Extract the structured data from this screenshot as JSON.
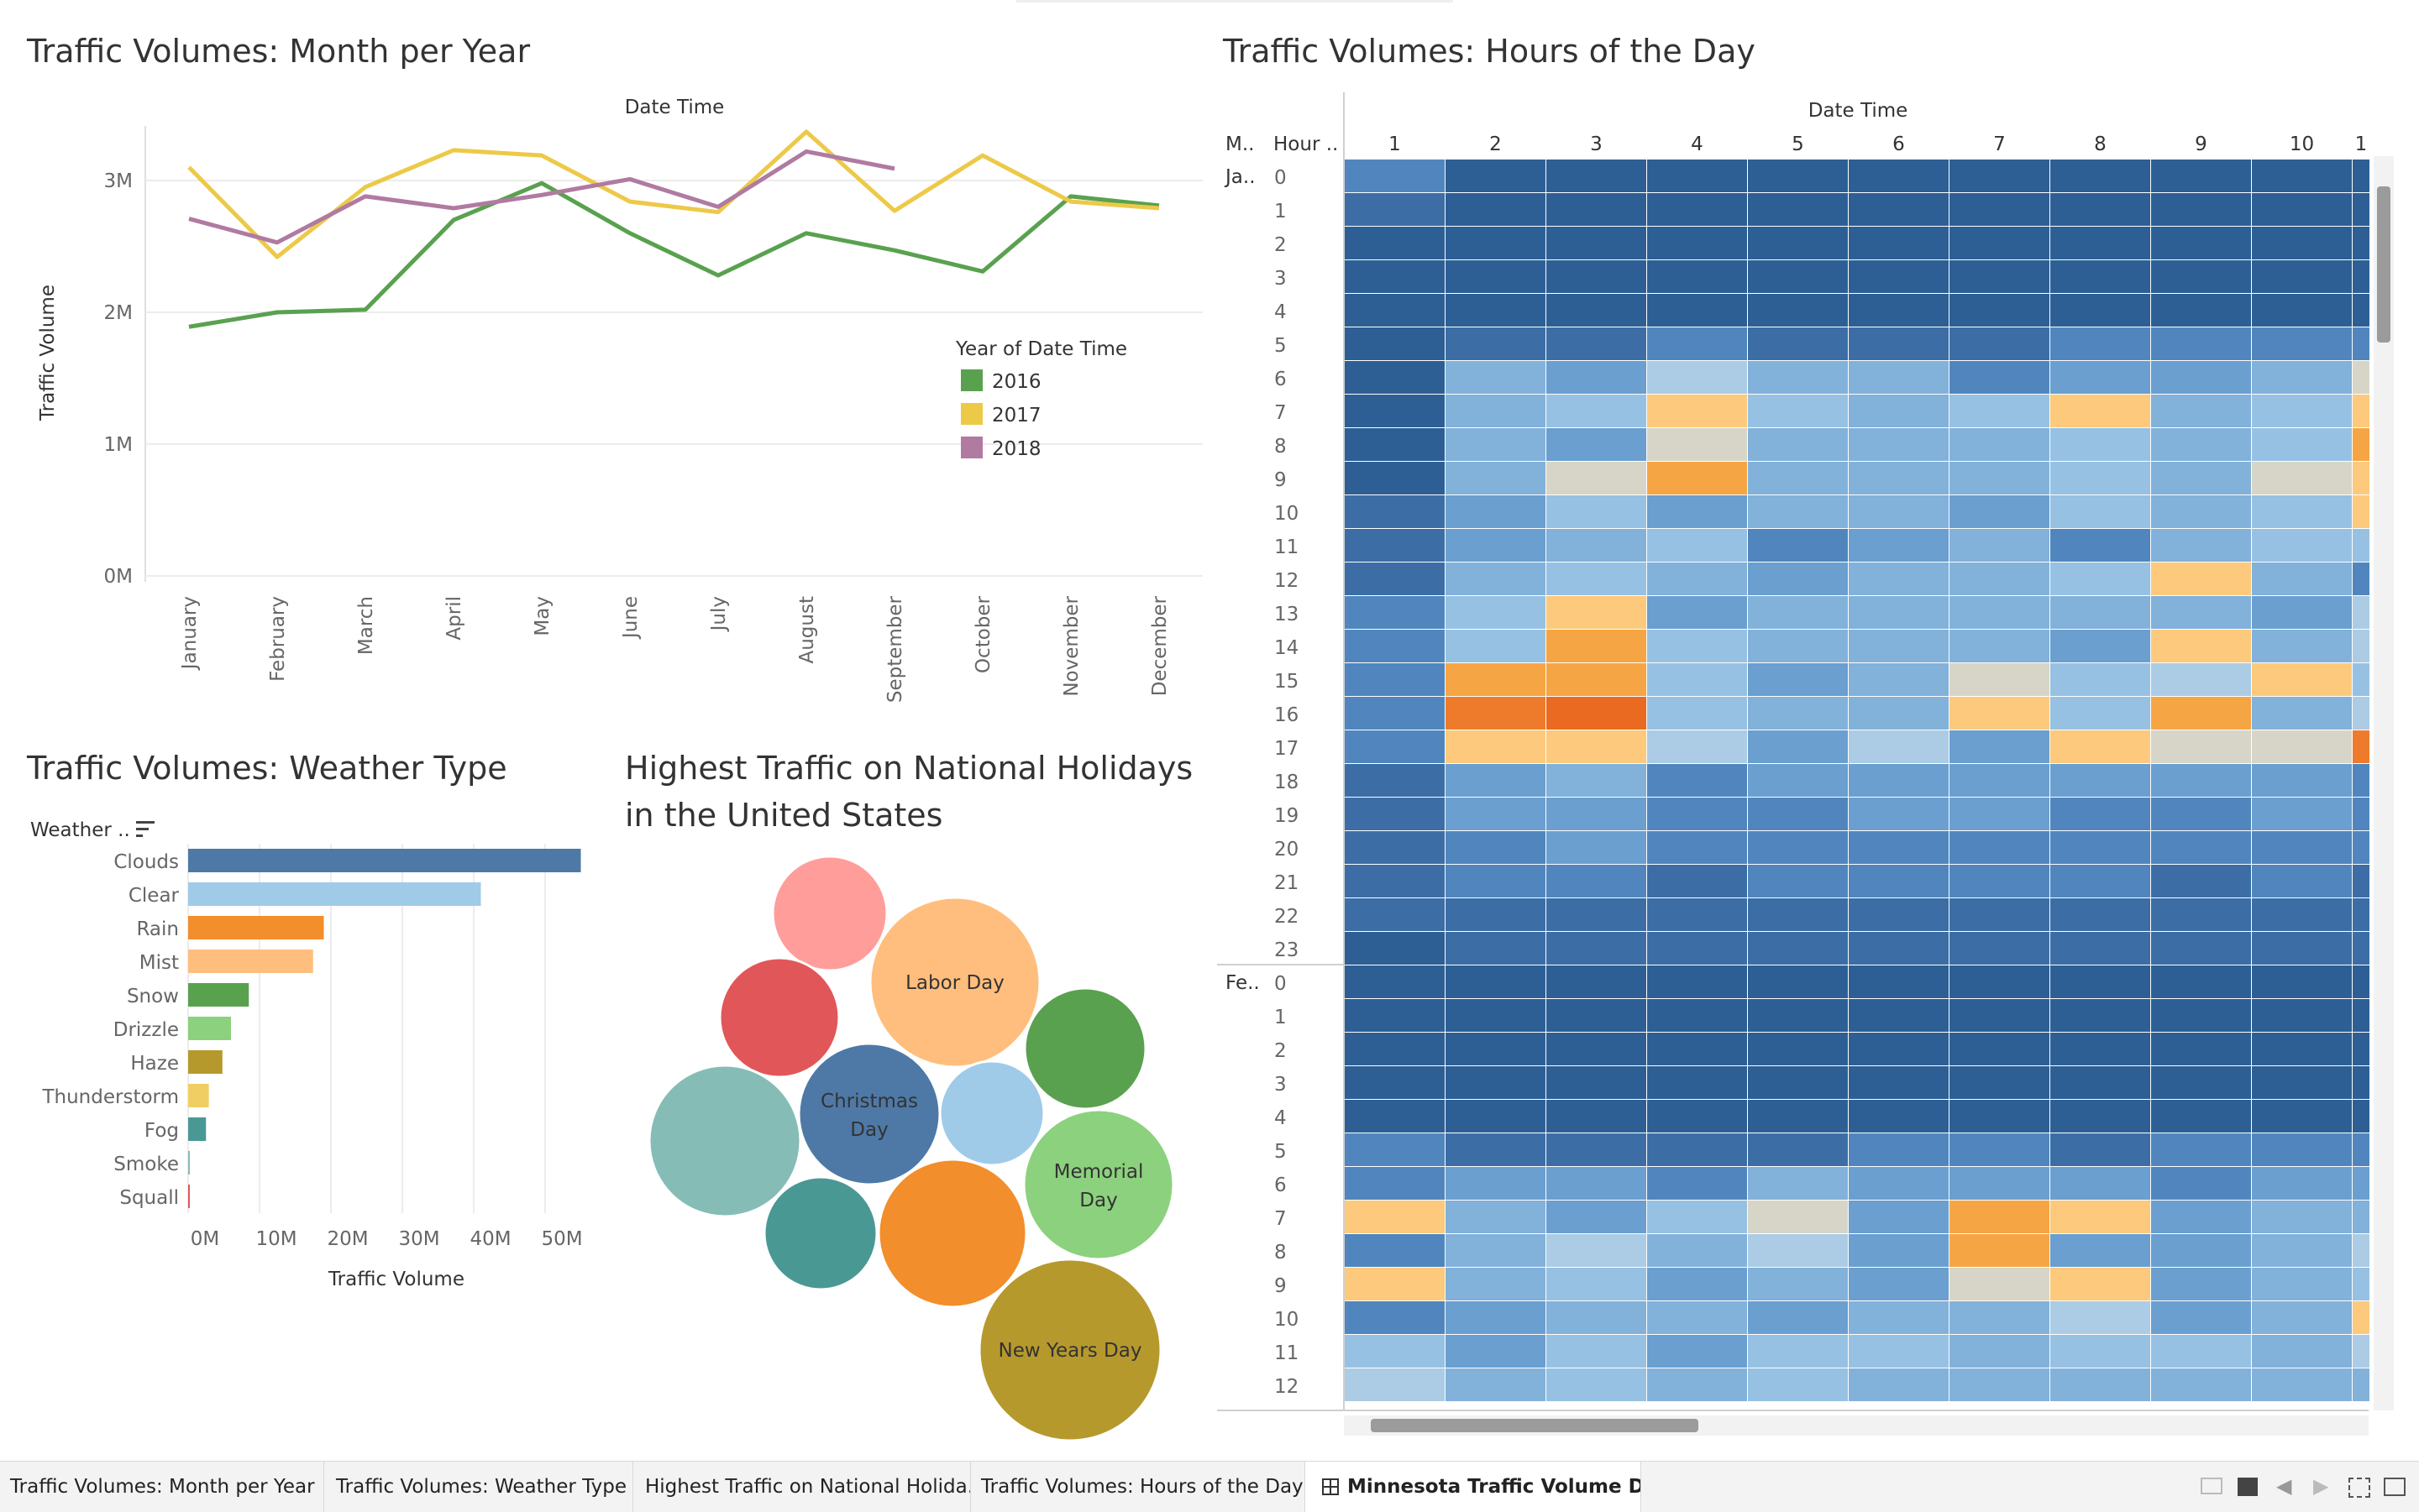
{
  "tabs": [
    {
      "label": "Traffic Volumes: Month per Year"
    },
    {
      "label": "Traffic Volumes: Weather Type"
    },
    {
      "label": "Highest Traffic on National Holida..."
    },
    {
      "label": "Traffic Volumes: Hours of the Day"
    },
    {
      "label": "Minnesota Traffic Volume D..."
    }
  ],
  "chart_data": [
    {
      "type": "line",
      "title": "Traffic Volumes: Month per Year",
      "xlabel": "Date Time",
      "ylabel": "Traffic Volume",
      "categories": [
        "January",
        "February",
        "March",
        "April",
        "May",
        "June",
        "July",
        "August",
        "September",
        "October",
        "November",
        "December"
      ],
      "yticks": [
        "0M",
        "1M",
        "2M",
        "3M"
      ],
      "ylim": [
        0,
        3500000
      ],
      "legend_title": "Year of Date Time",
      "legend_position": "right",
      "grid": true,
      "series": [
        {
          "name": "2016",
          "color": "#59a14f",
          "values": [
            1890000,
            2000000,
            2020000,
            2700000,
            2980000,
            2600000,
            2280000,
            2600000,
            2470000,
            2310000,
            2880000,
            2810000
          ]
        },
        {
          "name": "2017",
          "color": "#edc948",
          "values": [
            3100000,
            2420000,
            2950000,
            3230000,
            3190000,
            2840000,
            2760000,
            3370000,
            2770000,
            3190000,
            2840000,
            2790000
          ]
        },
        {
          "name": "2018",
          "color": "#b07aa1",
          "values": [
            2710000,
            2530000,
            2880000,
            2790000,
            2890000,
            3010000,
            2800000,
            3220000,
            3090000,
            null,
            null,
            null
          ]
        }
      ]
    },
    {
      "type": "bar",
      "title": "Traffic Volumes: Weather Type",
      "xlabel": "Traffic Volume",
      "ylabel": "Weather ..",
      "categories": [
        "Clouds",
        "Clear",
        "Rain",
        "Mist",
        "Snow",
        "Drizzle",
        "Haze",
        "Thunderstorm",
        "Fog",
        "Smoke",
        "Squall"
      ],
      "values": [
        55000000,
        41000000,
        19000000,
        17500000,
        8500000,
        6000000,
        4800000,
        2900000,
        2500000,
        100000,
        60000
      ],
      "colors": [
        "#4e79a7",
        "#a0cbe8",
        "#f28e2b",
        "#ffbe7d",
        "#59a14f",
        "#8cd17d",
        "#b6992d",
        "#f1ce63",
        "#499894",
        "#86bcb6",
        "#e15759"
      ],
      "xticks": [
        "0M",
        "10M",
        "20M",
        "30M",
        "40M",
        "50M"
      ],
      "xlim": [
        0,
        60000000
      ]
    },
    {
      "type": "bubble",
      "title_line1": "Highest Traffic on National Holidays",
      "title_line2": "in the United States",
      "bubbles": [
        {
          "label": "",
          "color": "#ff9d9a"
        },
        {
          "label": "Labor Day",
          "color": "#ffbe7d"
        },
        {
          "label": "",
          "color": "#e15759"
        },
        {
          "label": "",
          "color": "#59a14f"
        },
        {
          "label": "",
          "color": "#86bcb6"
        },
        {
          "label": "Christmas",
          "label2": "Day",
          "color": "#4e79a7"
        },
        {
          "label": "",
          "color": "#a0cbe8"
        },
        {
          "label": "Memorial",
          "label2": "Day",
          "color": "#8cd17d"
        },
        {
          "label": "",
          "color": "#499894"
        },
        {
          "label": "",
          "color": "#f28e2b"
        },
        {
          "label": "New Years Day",
          "color": "#b6992d"
        }
      ]
    },
    {
      "type": "heatmap",
      "title": "Traffic Volumes: Hours of the Day",
      "col_header": "Date Time",
      "row_header_month": "M..",
      "row_header_hour": "Hour ..",
      "columns": [
        "1",
        "2",
        "3",
        "4",
        "5",
        "6",
        "7",
        "8",
        "9",
        "10",
        "1"
      ],
      "groups": [
        {
          "month": "Ja..",
          "hours": [
            "0",
            "1",
            "2",
            "3",
            "4",
            "5",
            "6",
            "7",
            "8",
            "9",
            "10",
            "11",
            "12",
            "13",
            "14",
            "15",
            "16",
            "17",
            "18",
            "19",
            "20",
            "21",
            "22",
            "23"
          ]
        },
        {
          "month": "Fe..",
          "hours": [
            "0",
            "1",
            "2",
            "3",
            "4",
            "5",
            "6",
            "7",
            "8",
            "9",
            "10",
            "11",
            "12"
          ]
        }
      ],
      "values": [
        [
          2,
          0,
          0,
          0,
          0,
          0,
          0,
          0,
          0,
          0,
          0
        ],
        [
          1,
          0,
          0,
          0,
          0,
          0,
          0,
          0,
          0,
          0,
          0
        ],
        [
          0,
          0,
          0,
          0,
          0,
          0,
          0,
          0,
          0,
          0,
          0
        ],
        [
          0,
          0,
          0,
          0,
          0,
          0,
          0,
          0,
          0,
          0,
          0
        ],
        [
          0,
          0,
          0,
          0,
          0,
          0,
          0,
          0,
          0,
          0,
          0
        ],
        [
          0,
          1,
          1,
          2,
          1,
          1,
          1,
          2,
          2,
          2,
          2
        ],
        [
          0,
          4,
          3,
          6,
          4,
          4,
          2,
          3,
          3,
          4,
          7
        ],
        [
          0,
          4,
          5,
          8,
          5,
          4,
          5,
          8,
          4,
          5,
          8
        ],
        [
          0,
          4,
          3,
          7,
          4,
          4,
          4,
          5,
          4,
          5,
          9
        ],
        [
          0,
          4,
          7,
          9,
          4,
          4,
          4,
          5,
          4,
          7,
          8
        ],
        [
          1,
          3,
          5,
          3,
          4,
          4,
          3,
          5,
          4,
          5,
          8
        ],
        [
          1,
          3,
          4,
          5,
          2,
          3,
          4,
          2,
          4,
          5,
          5
        ],
        [
          1,
          4,
          5,
          4,
          3,
          4,
          4,
          5,
          8,
          4,
          2
        ],
        [
          2,
          5,
          8,
          3,
          4,
          4,
          4,
          4,
          4,
          3,
          6
        ],
        [
          2,
          5,
          9,
          5,
          4,
          4,
          4,
          3,
          8,
          4,
          6
        ],
        [
          2,
          9,
          9,
          5,
          3,
          4,
          7,
          5,
          6,
          8,
          5
        ],
        [
          2,
          10,
          11,
          5,
          4,
          4,
          8,
          5,
          9,
          4,
          6
        ],
        [
          2,
          8,
          8,
          6,
          3,
          6,
          3,
          8,
          7,
          7,
          10
        ],
        [
          1,
          3,
          4,
          2,
          3,
          3,
          3,
          3,
          3,
          3,
          2
        ],
        [
          1,
          3,
          3,
          2,
          2,
          3,
          3,
          2,
          2,
          3,
          2
        ],
        [
          1,
          2,
          3,
          2,
          2,
          2,
          2,
          2,
          2,
          2,
          2
        ],
        [
          1,
          2,
          2,
          1,
          2,
          2,
          2,
          2,
          1,
          2,
          1
        ],
        [
          1,
          1,
          1,
          1,
          1,
          1,
          1,
          1,
          1,
          1,
          1
        ],
        [
          0,
          1,
          1,
          1,
          1,
          1,
          1,
          1,
          1,
          1,
          1
        ],
        [
          0,
          0,
          0,
          0,
          0,
          0,
          0,
          0,
          0,
          0,
          0
        ],
        [
          0,
          0,
          0,
          0,
          0,
          0,
          0,
          0,
          0,
          0,
          0
        ],
        [
          0,
          0,
          0,
          0,
          0,
          0,
          0,
          0,
          0,
          0,
          0
        ],
        [
          0,
          0,
          0,
          0,
          0,
          0,
          0,
          0,
          0,
          0,
          0
        ],
        [
          0,
          0,
          0,
          0,
          0,
          0,
          0,
          0,
          0,
          0,
          0
        ],
        [
          2,
          1,
          1,
          1,
          1,
          2,
          2,
          1,
          2,
          2,
          2
        ],
        [
          2,
          3,
          3,
          2,
          4,
          3,
          3,
          3,
          2,
          3,
          3
        ],
        [
          8,
          4,
          3,
          5,
          7,
          3,
          9,
          8,
          3,
          4,
          4
        ],
        [
          2,
          4,
          6,
          4,
          6,
          3,
          9,
          3,
          3,
          4,
          6
        ],
        [
          8,
          4,
          5,
          3,
          4,
          3,
          7,
          8,
          3,
          4,
          5
        ],
        [
          2,
          3,
          4,
          4,
          3,
          4,
          4,
          6,
          3,
          4,
          8
        ],
        [
          5,
          3,
          5,
          3,
          5,
          5,
          4,
          5,
          5,
          4,
          6
        ],
        [
          6,
          4,
          5,
          4,
          5,
          4,
          4,
          4,
          4,
          4,
          4
        ]
      ]
    }
  ]
}
